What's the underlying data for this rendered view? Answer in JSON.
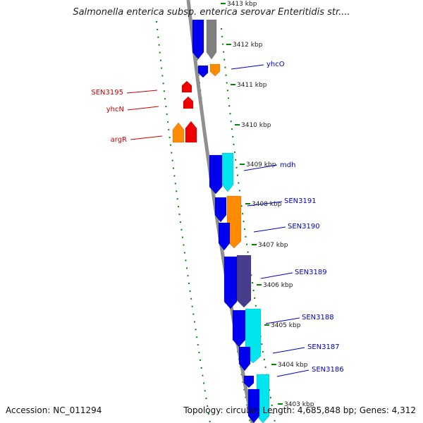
{
  "title": "Salmonella enterica subsp. enterica serovar Enteritidis str....",
  "footer": {
    "accession": "Accession: NC_011294",
    "summary": "Topology: circular; Length: 4,685,848 bp; Genes: 4,312"
  },
  "colors": {
    "forward_label": "#0000cc",
    "reverse_label": "#cc0000",
    "tick": "#008800",
    "backbone": "#888888",
    "cds_forward": "#0000ee",
    "cds_reverse": "#ee0000",
    "orange": "#ff8c00",
    "cyan": "#00e5ee",
    "slate": "#483d8b",
    "gray": "#808080"
  },
  "ruler_labels": [
    "3413 kbp",
    "3412 kbp",
    "3411 kbp",
    "3410 kbp",
    "3409 kbp",
    "3408 kbp",
    "3407 kbp",
    "3406 kbp",
    "3405 kbp",
    "3404 kbp",
    "3403 kbp"
  ],
  "gene_labels": [
    {
      "id": "yhcO",
      "text": "yhcO",
      "strand": "forward"
    },
    {
      "id": "SEN3195",
      "text": "SEN3195",
      "strand": "reverse"
    },
    {
      "id": "yhcN",
      "text": "yhcN",
      "strand": "reverse"
    },
    {
      "id": "argR",
      "text": "argR",
      "strand": "reverse"
    },
    {
      "id": "mdh",
      "text": "mdh",
      "strand": "forward"
    },
    {
      "id": "SEN3191",
      "text": "SEN3191",
      "strand": "forward"
    },
    {
      "id": "SEN3190",
      "text": "SEN3190",
      "strand": "forward"
    },
    {
      "id": "SEN3189",
      "text": "SEN3189",
      "strand": "forward"
    },
    {
      "id": "SEN3188",
      "text": "SEN3188",
      "strand": "forward"
    },
    {
      "id": "SEN3187",
      "text": "SEN3187",
      "strand": "forward"
    },
    {
      "id": "SEN3186",
      "text": "SEN3186",
      "strand": "forward"
    }
  ]
}
